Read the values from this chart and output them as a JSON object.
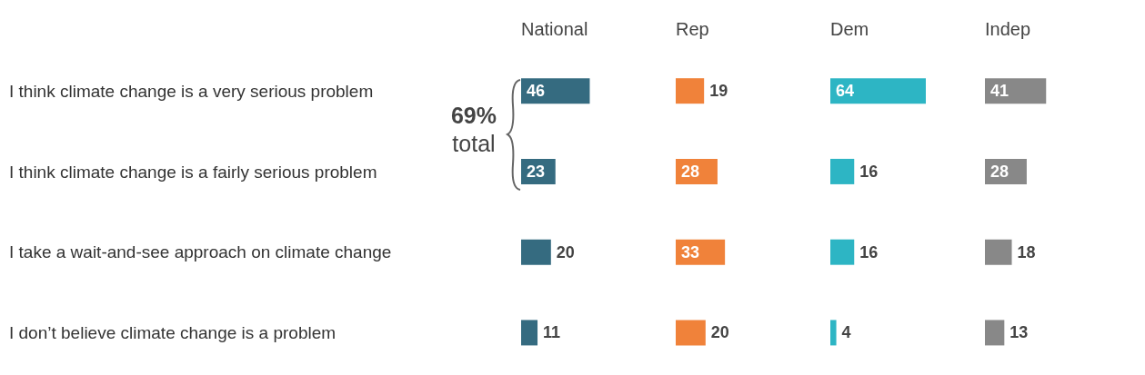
{
  "chart_data": [
    {
      "type": "bar",
      "orientation": "horizontal",
      "title": "National",
      "categories": [
        "I think climate change is a very serious problem",
        "I think climate change is a fairly serious problem",
        "I take a wait-and-see approach on climate change",
        "I don’t believe climate change is a problem"
      ],
      "values": [
        46,
        23,
        20,
        11
      ],
      "color": "#356b80",
      "data_labels": true,
      "tick_labels": "y",
      "annotations": [
        "69% total"
      ]
    },
    {
      "type": "bar",
      "orientation": "horizontal",
      "title": "Rep",
      "categories": [
        null,
        null,
        null,
        null
      ],
      "values": [
        19,
        28,
        33,
        20
      ],
      "color": "#f0823a",
      "data_labels": true,
      "tick_labels": false
    },
    {
      "type": "bar",
      "orientation": "horizontal",
      "title": "Dem",
      "categories": [
        null,
        null,
        null,
        null
      ],
      "values": [
        64,
        16,
        16,
        4
      ],
      "color": "#2db5c4",
      "data_labels": true,
      "tick_labels": false
    },
    {
      "type": "bar",
      "orientation": "horizontal",
      "title": "Indep",
      "categories": [
        null,
        null,
        null,
        null
      ],
      "values": [
        41,
        28,
        18,
        13
      ],
      "color": "#888888",
      "data_labels": true,
      "tick_labels": false
    }
  ]
}
